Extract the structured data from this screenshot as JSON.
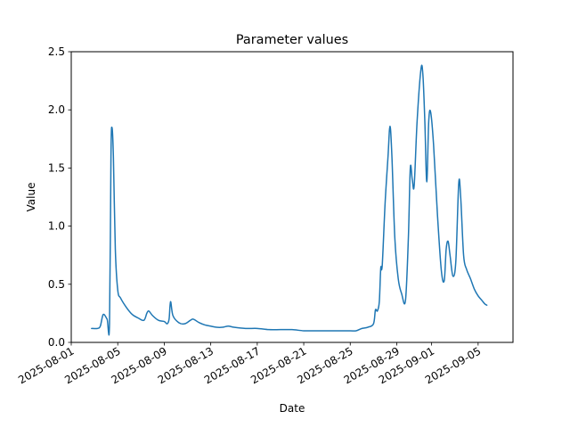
{
  "chart_data": {
    "type": "line",
    "title": "Parameter values",
    "xlabel": "Date",
    "ylabel": "Value",
    "xlim": [
      "2025-08-01",
      "2025-09-08"
    ],
    "ylim": [
      0,
      2.5
    ],
    "grid": false,
    "xticks": [
      "2025-08-01",
      "2025-08-05",
      "2025-08-09",
      "2025-08-13",
      "2025-08-17",
      "2025-08-21",
      "2025-08-25",
      "2025-08-29",
      "2025-09-01",
      "2025-09-05"
    ],
    "yticks": [
      "0.0",
      "0.5",
      "1.0",
      "1.5",
      "2.0",
      "2.5"
    ],
    "series": [
      {
        "color": "#1f77b4",
        "points": [
          [
            "2025-08-02T18:00",
            0.12
          ],
          [
            "2025-08-03T06:00",
            0.12
          ],
          [
            "2025-08-03T12:00",
            0.14
          ],
          [
            "2025-08-03T18:00",
            0.24
          ],
          [
            "2025-08-04T02:00",
            0.2
          ],
          [
            "2025-08-04T07:00",
            0.16
          ],
          [
            "2025-08-04T10:00",
            1.6
          ],
          [
            "2025-08-04T12:00",
            1.85
          ],
          [
            "2025-08-04T15:00",
            1.6
          ],
          [
            "2025-08-04T19:00",
            0.8
          ],
          [
            "2025-08-05T00:00",
            0.45
          ],
          [
            "2025-08-05T06:00",
            0.38
          ],
          [
            "2025-08-05T18:00",
            0.3
          ],
          [
            "2025-08-06T06:00",
            0.24
          ],
          [
            "2025-08-06T18:00",
            0.21
          ],
          [
            "2025-08-07T06:00",
            0.19
          ],
          [
            "2025-08-07T12:00",
            0.25
          ],
          [
            "2025-08-07T16:00",
            0.27
          ],
          [
            "2025-08-08T00:00",
            0.23
          ],
          [
            "2025-08-08T12:00",
            0.19
          ],
          [
            "2025-08-09T00:00",
            0.18
          ],
          [
            "2025-08-09T06:00",
            0.16
          ],
          [
            "2025-08-09T10:00",
            0.2
          ],
          [
            "2025-08-09T13:00",
            0.35
          ],
          [
            "2025-08-09T18:00",
            0.23
          ],
          [
            "2025-08-10T06:00",
            0.17
          ],
          [
            "2025-08-10T18:00",
            0.16
          ],
          [
            "2025-08-11T06:00",
            0.19
          ],
          [
            "2025-08-11T12:00",
            0.2
          ],
          [
            "2025-08-12T00:00",
            0.17
          ],
          [
            "2025-08-12T12:00",
            0.15
          ],
          [
            "2025-08-13T00:00",
            0.14
          ],
          [
            "2025-08-13T12:00",
            0.13
          ],
          [
            "2025-08-14T00:00",
            0.13
          ],
          [
            "2025-08-14T12:00",
            0.14
          ],
          [
            "2025-08-15T00:00",
            0.13
          ],
          [
            "2025-08-16T00:00",
            0.12
          ],
          [
            "2025-08-17T00:00",
            0.12
          ],
          [
            "2025-08-18T00:00",
            0.11
          ],
          [
            "2025-08-19T00:00",
            0.11
          ],
          [
            "2025-08-20T00:00",
            0.11
          ],
          [
            "2025-08-21T00:00",
            0.1
          ],
          [
            "2025-08-22T00:00",
            0.1
          ],
          [
            "2025-08-23T00:00",
            0.1
          ],
          [
            "2025-08-24T00:00",
            0.1
          ],
          [
            "2025-08-25T00:00",
            0.1
          ],
          [
            "2025-08-25T12:00",
            0.1
          ],
          [
            "2025-08-26T00:00",
            0.12
          ],
          [
            "2025-08-26T12:00",
            0.13
          ],
          [
            "2025-08-27T00:00",
            0.16
          ],
          [
            "2025-08-27T04:00",
            0.28
          ],
          [
            "2025-08-27T08:00",
            0.27
          ],
          [
            "2025-08-27T12:00",
            0.35
          ],
          [
            "2025-08-27T15:00",
            0.64
          ],
          [
            "2025-08-27T18:00",
            0.66
          ],
          [
            "2025-08-28T00:00",
            1.2
          ],
          [
            "2025-08-28T06:00",
            1.6
          ],
          [
            "2025-08-28T10:00",
            1.86
          ],
          [
            "2025-08-28T14:00",
            1.6
          ],
          [
            "2025-08-28T20:00",
            0.9
          ],
          [
            "2025-08-29T03:00",
            0.55
          ],
          [
            "2025-08-29T10:00",
            0.42
          ],
          [
            "2025-08-29T18:00",
            0.36
          ],
          [
            "2025-08-30T00:00",
            0.9
          ],
          [
            "2025-08-30T04:00",
            1.5
          ],
          [
            "2025-08-30T08:00",
            1.4
          ],
          [
            "2025-08-30T12:00",
            1.35
          ],
          [
            "2025-08-30T18:00",
            1.9
          ],
          [
            "2025-08-31T02:00",
            2.35
          ],
          [
            "2025-08-31T06:00",
            2.3
          ],
          [
            "2025-08-31T10:00",
            1.9
          ],
          [
            "2025-08-31T14:00",
            1.38
          ],
          [
            "2025-08-31T18:00",
            1.9
          ],
          [
            "2025-08-31T22:00",
            1.98
          ],
          [
            "2025-09-01T04:00",
            1.7
          ],
          [
            "2025-09-01T12:00",
            1.1
          ],
          [
            "2025-09-01T20:00",
            0.62
          ],
          [
            "2025-09-02T02:00",
            0.53
          ],
          [
            "2025-09-02T06:00",
            0.8
          ],
          [
            "2025-09-02T10:00",
            0.87
          ],
          [
            "2025-09-02T14:00",
            0.75
          ],
          [
            "2025-09-02T20:00",
            0.57
          ],
          [
            "2025-09-03T02:00",
            0.7
          ],
          [
            "2025-09-03T08:00",
            1.37
          ],
          [
            "2025-09-03T12:00",
            1.25
          ],
          [
            "2025-09-03T18:00",
            0.75
          ],
          [
            "2025-09-04T00:00",
            0.63
          ],
          [
            "2025-09-04T08:00",
            0.55
          ],
          [
            "2025-09-04T16:00",
            0.46
          ],
          [
            "2025-09-05T00:00",
            0.4
          ],
          [
            "2025-09-05T08:00",
            0.36
          ],
          [
            "2025-09-05T14:00",
            0.33
          ],
          [
            "2025-09-05T18:00",
            0.32
          ]
        ]
      }
    ]
  }
}
